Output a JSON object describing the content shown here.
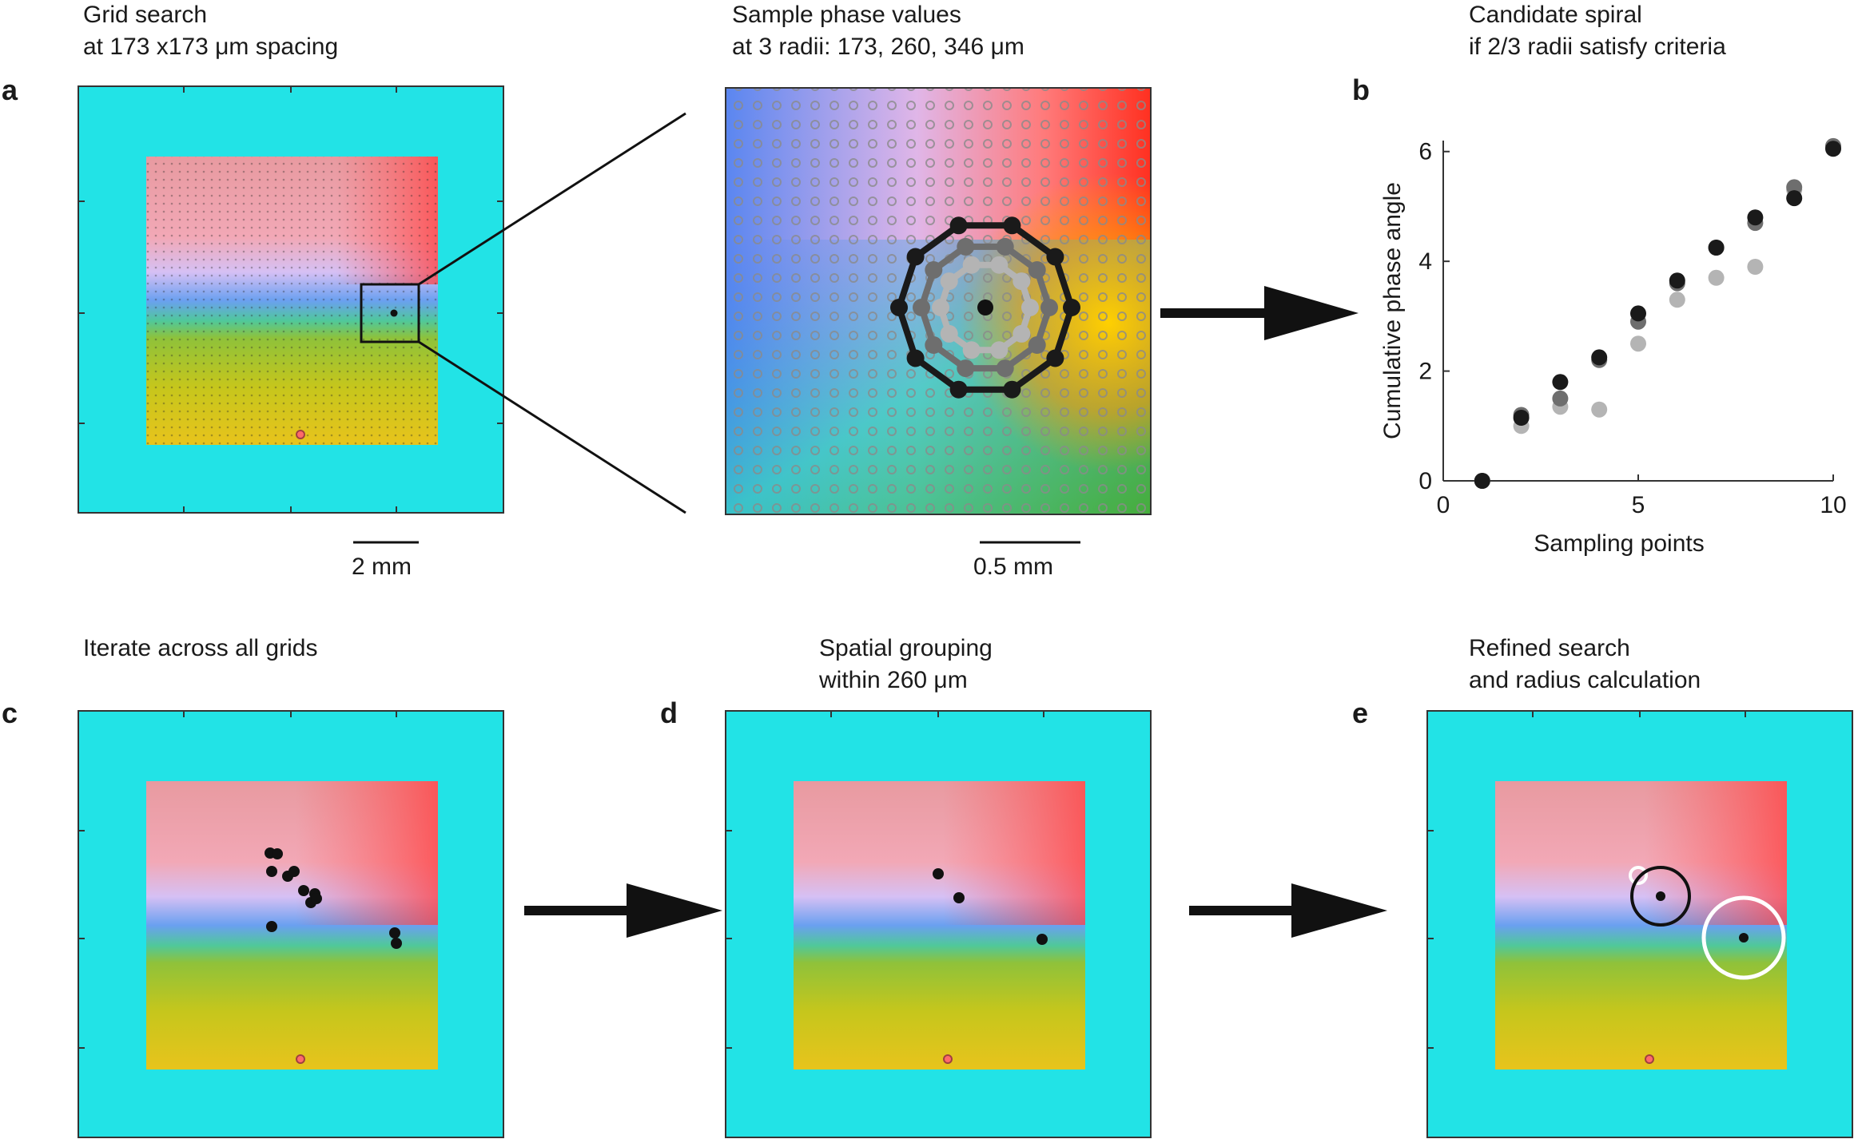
{
  "captions": {
    "a_line1": "Grid search",
    "a_line2": "at 173 x173 μm spacing",
    "zoom_line1": "Sample phase values",
    "zoom_line2": "at 3 radii: 173, 260, 346 μm",
    "b_line1": "Candidate spiral",
    "b_line2": "if 2/3 radii satisfy criteria",
    "c_line1": "Iterate across all grids",
    "d_line1": "Spatial grouping",
    "d_line2": "within 260 μm",
    "e_line1": "Refined search",
    "e_line2": "and radius calculation"
  },
  "panel_labels": {
    "a": "a",
    "b": "b",
    "c": "c",
    "d": "d",
    "e": "e"
  },
  "scalebars": {
    "a": "2 mm",
    "zoom": "0.5 mm"
  },
  "colors": {
    "background_frame": "#22e3e6",
    "dark_marker": "#1a1a1a",
    "mid_marker": "#6e6e6e",
    "light_marker": "#b4b4b4",
    "white_circle": "#ffffff"
  },
  "chart_data": {
    "type": "scatter",
    "xlabel": "Sampling points",
    "ylabel": "Cumulative phase angle",
    "xlim": [
      0,
      10
    ],
    "ylim": [
      0,
      6.2
    ],
    "xticks": [
      0,
      5,
      10
    ],
    "yticks": [
      0,
      2,
      4,
      6
    ],
    "series": [
      {
        "color": "#b4b4b4",
        "x": [
          1,
          2,
          3,
          4,
          5,
          6,
          7,
          8,
          9,
          10
        ],
        "y": [
          0,
          1.0,
          1.35,
          1.3,
          2.5,
          3.3,
          3.7,
          3.9,
          5.3,
          6.1
        ]
      },
      {
        "color": "#6e6e6e",
        "x": [
          1,
          2,
          3,
          4,
          5,
          6,
          7,
          8,
          9,
          10
        ],
        "y": [
          0,
          1.2,
          1.5,
          2.2,
          2.9,
          3.6,
          4.25,
          4.7,
          5.35,
          6.1
        ]
      },
      {
        "color": "#1a1a1a",
        "x": [
          1,
          2,
          3,
          4,
          5,
          6,
          7,
          8,
          9,
          10
        ],
        "y": [
          0,
          1.15,
          1.8,
          2.25,
          3.05,
          3.65,
          4.25,
          4.8,
          5.15,
          6.05
        ]
      }
    ]
  }
}
